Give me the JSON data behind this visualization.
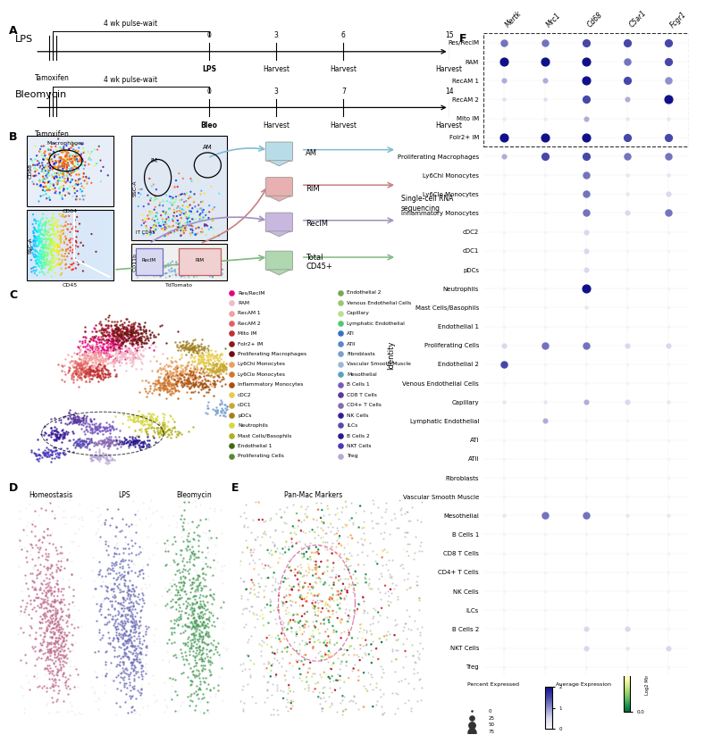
{
  "panel_F": {
    "genes": [
      "Mertk",
      "Mrc1",
      "Cd68",
      "C5ar1",
      "Fcgr1"
    ],
    "cell_types": [
      "Res/ReclM",
      "RAM",
      "RecAM 1",
      "RecAM 2",
      "Mito IM",
      "Folr2+ IM",
      "Proliferating Macrophages",
      "Ly6Chi Monocytes",
      "Ly6Clo Monocytes",
      "Inflammatory Monocytes",
      "cDC2",
      "cDC1",
      "pDCs",
      "Neutrophils",
      "Mast Cells/Basophils",
      "Endothelial 1",
      "Proliferating Cells",
      "Endothelial 2",
      "Venous Endothelial Cells",
      "Capillary",
      "Lymphatic Endothelial",
      "ATI",
      "ATII",
      "Fibroblasts",
      "Vascular Smooth Muscle",
      "Mesothelial",
      "B Cells 1",
      "CD8 T Cells",
      "CD4+ T Cells",
      "NK Cells",
      "ILCs",
      "B Cells 2",
      "NKT Cells",
      "Treg"
    ],
    "dot_sizes": [
      [
        45,
        45,
        55,
        55,
        55
      ],
      [
        70,
        70,
        70,
        45,
        55
      ],
      [
        20,
        20,
        70,
        55,
        45
      ],
      [
        8,
        8,
        55,
        20,
        70
      ],
      [
        8,
        8,
        20,
        8,
        8
      ],
      [
        70,
        70,
        70,
        55,
        55
      ],
      [
        20,
        55,
        55,
        45,
        45
      ],
      [
        4,
        4,
        45,
        8,
        8
      ],
      [
        4,
        4,
        45,
        8,
        20
      ],
      [
        4,
        4,
        45,
        20,
        45
      ],
      [
        4,
        4,
        20,
        4,
        4
      ],
      [
        4,
        4,
        20,
        4,
        4
      ],
      [
        4,
        4,
        20,
        4,
        4
      ],
      [
        4,
        4,
        70,
        4,
        4
      ],
      [
        4,
        4,
        8,
        4,
        4
      ],
      [
        4,
        4,
        4,
        4,
        4
      ],
      [
        20,
        45,
        45,
        20,
        20
      ],
      [
        45,
        4,
        4,
        4,
        4
      ],
      [
        4,
        4,
        4,
        4,
        4
      ],
      [
        8,
        8,
        20,
        20,
        8
      ],
      [
        4,
        20,
        4,
        4,
        4
      ],
      [
        4,
        4,
        4,
        4,
        4
      ],
      [
        4,
        4,
        4,
        4,
        4
      ],
      [
        4,
        4,
        4,
        4,
        4
      ],
      [
        4,
        4,
        4,
        4,
        4
      ],
      [
        8,
        45,
        45,
        8,
        8
      ],
      [
        4,
        4,
        4,
        4,
        4
      ],
      [
        4,
        4,
        4,
        4,
        4
      ],
      [
        4,
        4,
        4,
        4,
        4
      ],
      [
        4,
        4,
        4,
        4,
        4
      ],
      [
        4,
        4,
        4,
        4,
        4
      ],
      [
        4,
        4,
        20,
        20,
        4
      ],
      [
        4,
        4,
        20,
        8,
        20
      ],
      [
        4,
        4,
        4,
        4,
        4
      ]
    ],
    "dot_colors": [
      [
        1.2,
        1.2,
        1.5,
        1.5,
        1.5
      ],
      [
        2.0,
        2.0,
        2.0,
        1.2,
        1.5
      ],
      [
        0.8,
        0.8,
        2.0,
        1.5,
        1.0
      ],
      [
        0.4,
        0.4,
        1.5,
        0.8,
        2.0
      ],
      [
        0.2,
        0.2,
        0.8,
        0.3,
        0.3
      ],
      [
        2.0,
        2.0,
        2.0,
        1.5,
        1.5
      ],
      [
        0.8,
        1.5,
        1.5,
        1.2,
        1.2
      ],
      [
        0.1,
        0.1,
        1.2,
        0.3,
        0.3
      ],
      [
        0.1,
        0.1,
        1.2,
        0.3,
        0.5
      ],
      [
        0.1,
        0.1,
        1.2,
        0.5,
        1.2
      ],
      [
        0.1,
        0.1,
        0.5,
        0.1,
        0.1
      ],
      [
        0.1,
        0.1,
        0.5,
        0.1,
        0.1
      ],
      [
        0.1,
        0.1,
        0.5,
        0.1,
        0.1
      ],
      [
        0.1,
        0.1,
        2.0,
        0.1,
        0.1
      ],
      [
        0.1,
        0.1,
        0.3,
        0.1,
        0.1
      ],
      [
        0.1,
        0.1,
        0.1,
        0.1,
        0.1
      ],
      [
        0.5,
        1.2,
        1.2,
        0.5,
        0.5
      ],
      [
        1.5,
        0.1,
        0.1,
        0.1,
        0.1
      ],
      [
        0.1,
        0.1,
        0.1,
        0.1,
        0.1
      ],
      [
        0.3,
        0.3,
        0.8,
        0.5,
        0.3
      ],
      [
        0.1,
        0.8,
        0.1,
        0.1,
        0.1
      ],
      [
        0.1,
        0.1,
        0.1,
        0.1,
        0.1
      ],
      [
        0.1,
        0.1,
        0.1,
        0.1,
        0.1
      ],
      [
        0.1,
        0.1,
        0.1,
        0.1,
        0.1
      ],
      [
        0.1,
        0.1,
        0.1,
        0.1,
        0.1
      ],
      [
        0.3,
        1.2,
        1.2,
        0.3,
        0.3
      ],
      [
        0.1,
        0.1,
        0.1,
        0.1,
        0.1
      ],
      [
        0.1,
        0.1,
        0.1,
        0.1,
        0.1
      ],
      [
        0.1,
        0.1,
        0.1,
        0.1,
        0.1
      ],
      [
        0.1,
        0.1,
        0.1,
        0.1,
        0.1
      ],
      [
        0.1,
        0.1,
        0.1,
        0.1,
        0.1
      ],
      [
        0.1,
        0.1,
        0.5,
        0.5,
        0.1
      ],
      [
        0.1,
        0.1,
        0.5,
        0.3,
        0.5
      ],
      [
        0.1,
        0.1,
        0.1,
        0.1,
        0.1
      ]
    ]
  },
  "panel_C_legend": [
    {
      "label": "Res/ReclM",
      "color": "#e6007e"
    },
    {
      "label": "RAM",
      "color": "#f4b8c8"
    },
    {
      "label": "RecAM 1",
      "color": "#f4a0a0"
    },
    {
      "label": "RecAM 2",
      "color": "#e06060"
    },
    {
      "label": "Mito IM",
      "color": "#c03030"
    },
    {
      "label": "Folr2+ IM",
      "color": "#8b1a1a"
    },
    {
      "label": "Proliferating Macrophages",
      "color": "#6b0f0f"
    },
    {
      "label": "Ly6Chi Monocytes",
      "color": "#e8a060"
    },
    {
      "label": "Ly6Clo Monocytes",
      "color": "#d07830"
    },
    {
      "label": "Inflammatory Monocytes",
      "color": "#a85010"
    },
    {
      "label": "cDC2",
      "color": "#e8cc50"
    },
    {
      "label": "cDC1",
      "color": "#c8a830"
    },
    {
      "label": "pDCs",
      "color": "#a08020"
    },
    {
      "label": "Neutrophils",
      "color": "#d8d840"
    },
    {
      "label": "Mast Cells/Basophils",
      "color": "#b0b020"
    },
    {
      "label": "Endothelial 1",
      "color": "#3d6b10"
    },
    {
      "label": "Proliferating Cells",
      "color": "#5a8a30"
    },
    {
      "label": "Endothelial 2",
      "color": "#78a850"
    },
    {
      "label": "Venous Endothelial Cells",
      "color": "#98c870"
    },
    {
      "label": "Capillary",
      "color": "#b8e090"
    },
    {
      "label": "Lymphatic Endothelial",
      "color": "#50c870"
    },
    {
      "label": "ATI",
      "color": "#3870c0"
    },
    {
      "label": "ATII",
      "color": "#5888c8"
    },
    {
      "label": "Fibroblasts",
      "color": "#78a0d0"
    },
    {
      "label": "Vascular Smooth Muscle",
      "color": "#98b8d8"
    },
    {
      "label": "Mesothelial",
      "color": "#58a0c0"
    },
    {
      "label": "B Cells 1",
      "color": "#7858c0"
    },
    {
      "label": "CD8 T Cells",
      "color": "#5838a0"
    },
    {
      "label": "CD4+ T Cells",
      "color": "#8868b0"
    },
    {
      "label": "NK Cells",
      "color": "#381898"
    },
    {
      "label": "ILCs",
      "color": "#5848b0"
    },
    {
      "label": "B Cells 2",
      "color": "#281890"
    },
    {
      "label": "NKT Cells",
      "color": "#4838b8"
    },
    {
      "label": "Treg",
      "color": "#b8a8d8"
    }
  ],
  "background_color": "#ffffff"
}
